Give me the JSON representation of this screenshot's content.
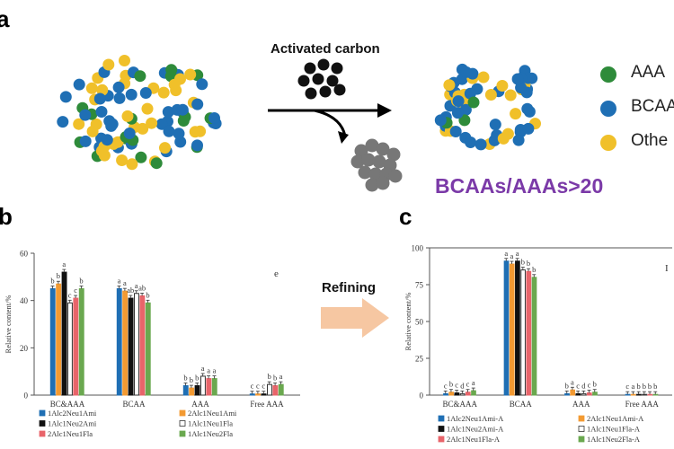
{
  "panel_a": {
    "letter": "a",
    "process_label": "Activated carbon",
    "ratio_text": "BCAAs/AAAs>20",
    "legend": [
      {
        "label": "AAA",
        "color": "#2e8b3a"
      },
      {
        "label": "BCAA",
        "color": "#1f6fb4"
      },
      {
        "label": "Othe",
        "color": "#f0c02a"
      }
    ]
  },
  "panel_b": {
    "letter": "b"
  },
  "panel_c": {
    "letter": "c"
  },
  "refining_label": "Refining",
  "chart_data": [
    {
      "type": "bar",
      "panel": "b",
      "corner_label": "e",
      "ylabel": "Relative content/%",
      "ylim": [
        0,
        60
      ],
      "yticks": [
        0,
        20,
        40,
        60
      ],
      "categories": [
        "BC&AAA",
        "BCAA",
        "AAA",
        "Free AAA"
      ],
      "series": [
        {
          "name": "1Alc2Neu1Ami",
          "color": "#1f6fb4",
          "hollow": false,
          "values": [
            45,
            45,
            4,
            0.5
          ],
          "letters": [
            "b",
            "a",
            "b",
            "c"
          ]
        },
        {
          "name": "2Alc1Neu1Ami",
          "color": "#f39a32",
          "hollow": false,
          "values": [
            47,
            44,
            3,
            0.5
          ],
          "letters": [
            "b",
            "a",
            "b",
            "c"
          ]
        },
        {
          "name": "1Alc1Neu2Ami",
          "color": "#111111",
          "hollow": false,
          "values": [
            52,
            41,
            4,
            0.5
          ],
          "letters": [
            "a",
            "ab",
            "b",
            "c"
          ]
        },
        {
          "name": "1Alc1Neu1Fla",
          "color": "#333333",
          "hollow": true,
          "values": [
            39,
            43,
            8,
            4.5
          ],
          "letters": [
            "c",
            "a",
            "a",
            "b"
          ]
        },
        {
          "name": "2Alc1Neu1Fla",
          "color": "#e8646a",
          "hollow": false,
          "values": [
            41,
            42,
            7,
            4
          ],
          "letters": [
            "c",
            "ab",
            "a",
            "b"
          ]
        },
        {
          "name": "1Alc1Neu2Fla",
          "color": "#6aa84f",
          "hollow": false,
          "values": [
            45,
            39,
            7,
            4.5
          ],
          "letters": [
            "b",
            "b",
            "a",
            "a"
          ]
        }
      ],
      "legend": [
        {
          "label": "1Alc2Neu1Ami",
          "color": "#1f6fb4",
          "hollow": false
        },
        {
          "label": "2Alc1Neu1Ami",
          "color": "#f39a32",
          "hollow": false
        },
        {
          "label": "1Alc1Neu2Ami",
          "color": "#111111",
          "hollow": false
        },
        {
          "label": "1Alc1Neu1Fla",
          "color": "#333333",
          "hollow": true
        },
        {
          "label": "2Alc1Neu1Fla",
          "color": "#e8646a",
          "hollow": false
        },
        {
          "label": "1Alc1Neu2Fla",
          "color": "#6aa84f",
          "hollow": false
        }
      ]
    },
    {
      "type": "bar",
      "panel": "c",
      "corner_label": "I",
      "ylabel": "Relative content/%",
      "ylim": [
        0,
        100
      ],
      "yticks": [
        0,
        25,
        50,
        75,
        100
      ],
      "categories": [
        "BC&AAA",
        "BCAA",
        "AAA",
        "Free AAA"
      ],
      "series": [
        {
          "name": "1Alc2Neu1Ami-A",
          "color": "#1f6fb4",
          "hollow": false,
          "values": [
            1,
            91,
            1,
            0.5
          ],
          "letters": [
            "c",
            "a",
            "b",
            "c"
          ]
        },
        {
          "name": "2Alc1Neu1Ami-A",
          "color": "#f39a32",
          "hollow": false,
          "values": [
            2,
            89,
            3.5,
            0.5
          ],
          "letters": [
            "b",
            "a",
            "a",
            "a"
          ]
        },
        {
          "name": "1Alc1Neu2Ami-A",
          "color": "#111111",
          "hollow": false,
          "values": [
            1.5,
            91,
            1,
            0.5
          ],
          "letters": [
            "c",
            "a",
            "c",
            "b"
          ]
        },
        {
          "name": "1Alc1Neu1Fla-A",
          "color": "#333333",
          "hollow": true,
          "values": [
            1,
            85,
            1,
            0.5
          ],
          "letters": [
            "d",
            "b",
            "d",
            "b"
          ]
        },
        {
          "name": "2Alc1Neu1Fla-A",
          "color": "#e8646a",
          "hollow": false,
          "values": [
            2,
            84,
            1.5,
            0.5
          ],
          "letters": [
            "c",
            "b",
            "c",
            "b"
          ]
        },
        {
          "name": "1Alc1Neu2Fla-A",
          "color": "#6aa84f",
          "hollow": false,
          "values": [
            3,
            80,
            2,
            0.5
          ],
          "letters": [
            "a",
            "b",
            "b",
            "b"
          ]
        }
      ],
      "legend": [
        {
          "label": "1Alc2Neu1Ami-A",
          "color": "#1f6fb4",
          "hollow": false
        },
        {
          "label": "2Alc1Neu1Ami-A",
          "color": "#f39a32",
          "hollow": false
        },
        {
          "label": "1Alc1Neu2Ami-A",
          "color": "#111111",
          "hollow": false
        },
        {
          "label": "1Alc1Neu1Fla-A",
          "color": "#333333",
          "hollow": true
        },
        {
          "label": "2Alc1Neu1Fla-A",
          "color": "#e8646a",
          "hollow": false
        },
        {
          "label": "1Alc1Neu2Fla-A",
          "color": "#6aa84f",
          "hollow": false
        }
      ]
    }
  ]
}
